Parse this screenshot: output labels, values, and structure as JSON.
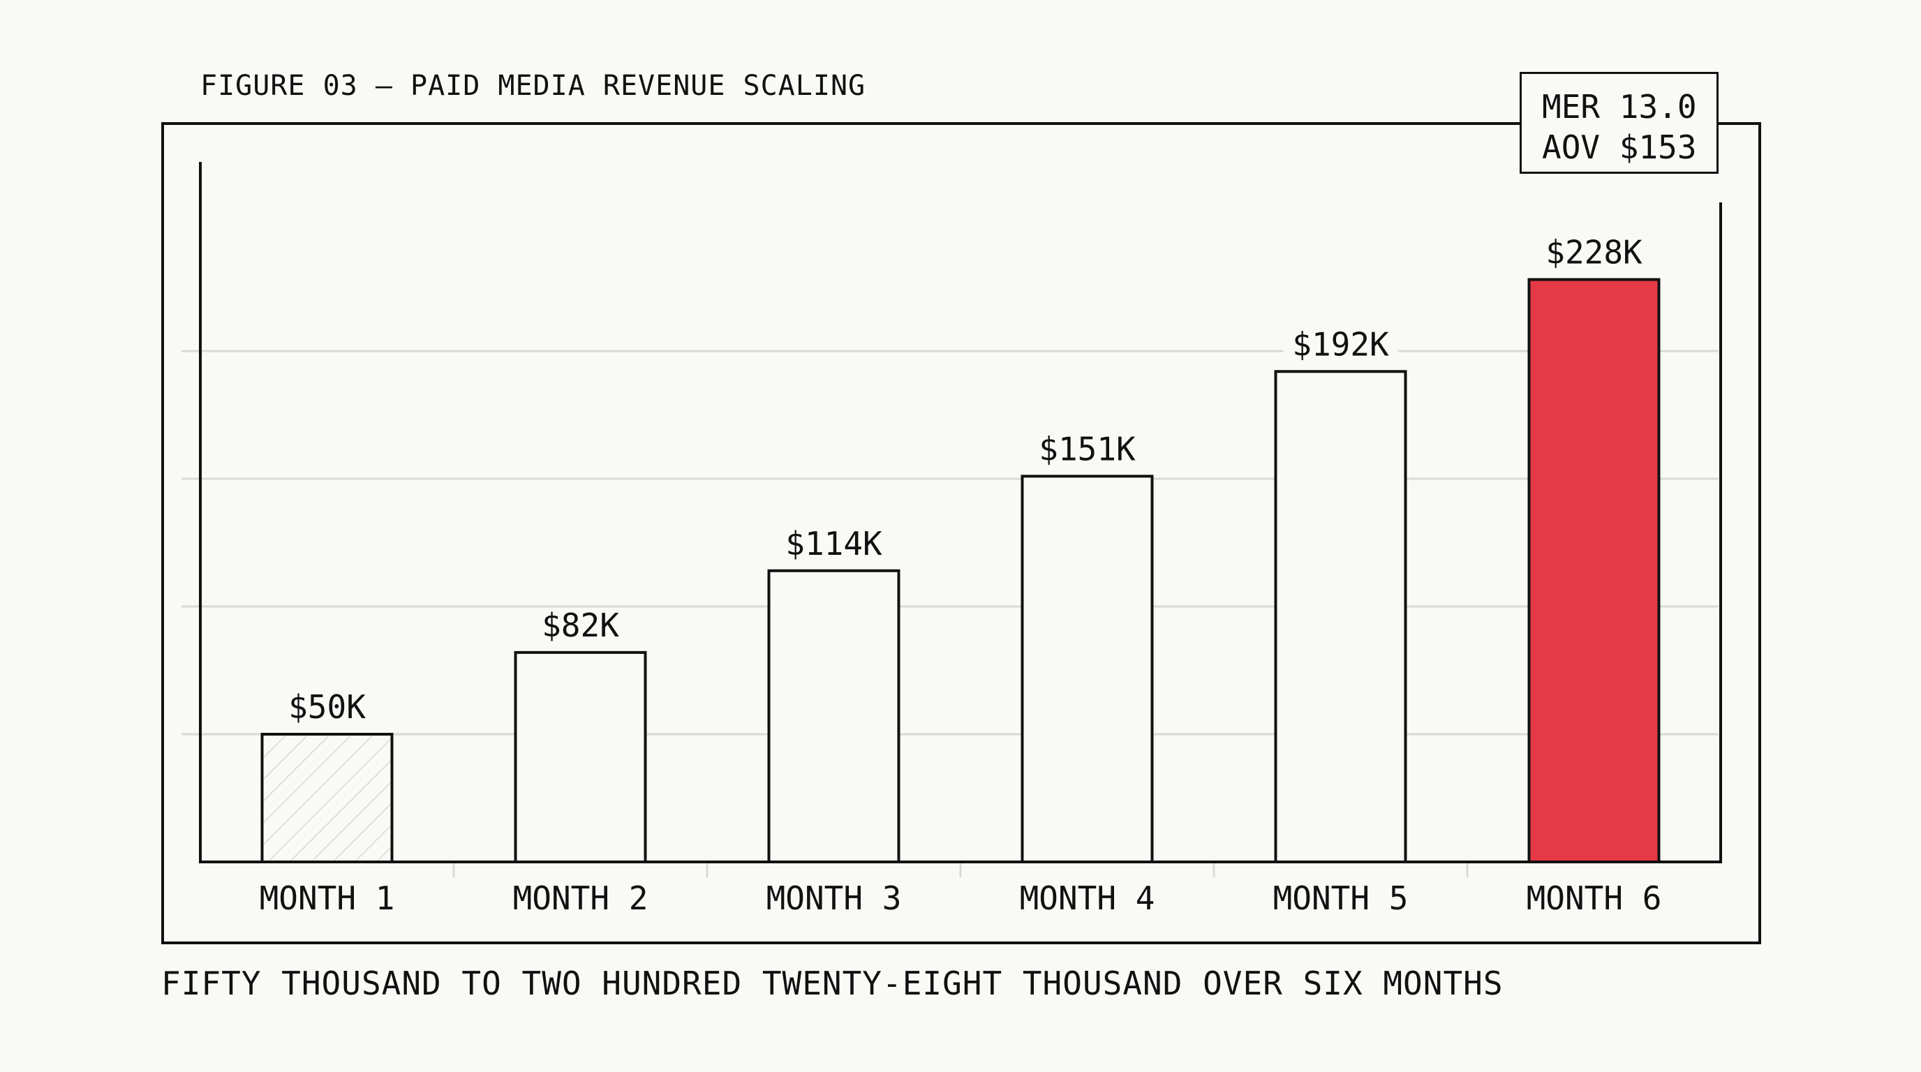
{
  "figure": {
    "title": "FIGURE 03 — PAID MEDIA REVENUE SCALING",
    "caption": "FIFTY THOUSAND TO TWO HUNDRED TWENTY-EIGHT THOUSAND OVER SIX MONTHS"
  },
  "kpi": {
    "mer": "MER 13.0",
    "aov": "AOV $153"
  },
  "colors": {
    "background": "#f9f9f6",
    "ink": "#111111",
    "grid": "#d9d9d5",
    "highlight": "#e63946",
    "hatch": "#c9c9c4"
  },
  "chart_data": {
    "type": "bar",
    "categories": [
      "MONTH 1",
      "MONTH 2",
      "MONTH 3",
      "MONTH 4",
      "MONTH 5",
      "MONTH 6"
    ],
    "values": [
      50,
      82,
      114,
      151,
      192,
      228
    ],
    "value_labels": [
      "$50K",
      "$82K",
      "$114K",
      "$151K",
      "$192K",
      "$228K"
    ],
    "unit": "thousand USD",
    "ylim": [
      0,
      250
    ],
    "grid": true,
    "grid_step": 50,
    "bar_styles": [
      "hatched",
      "outline",
      "outline",
      "outline",
      "outline",
      "highlight"
    ]
  }
}
